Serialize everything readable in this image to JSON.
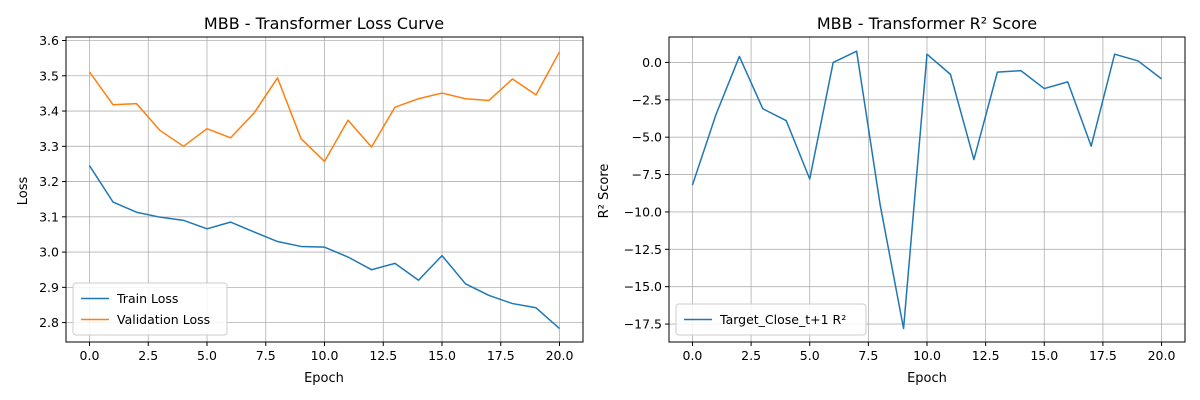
{
  "chart_data": [
    {
      "type": "line",
      "title": "MBB - Transformer Loss Curve",
      "xlabel": "Epoch",
      "ylabel": "Loss",
      "xlim": [
        -1,
        21
      ],
      "ylim": [
        2.745,
        3.61
      ],
      "xticks": [
        0,
        2.5,
        5,
        7.5,
        10,
        12.5,
        15,
        17.5,
        20
      ],
      "xtick_labels": [
        "0.0",
        "2.5",
        "5.0",
        "7.5",
        "10.0",
        "12.5",
        "15.0",
        "17.5",
        "20.0"
      ],
      "yticks": [
        2.8,
        2.9,
        3.0,
        3.1,
        3.2,
        3.3,
        3.4,
        3.5,
        3.6
      ],
      "ytick_labels": [
        "2.8",
        "2.9",
        "3.0",
        "3.1",
        "3.2",
        "3.3",
        "3.4",
        "3.5",
        "3.6"
      ],
      "grid": true,
      "legend_position": "lower-left",
      "x": [
        0,
        1,
        2,
        3,
        4,
        5,
        6,
        7,
        8,
        9,
        10,
        11,
        12,
        13,
        14,
        15,
        16,
        17,
        18,
        19,
        20
      ],
      "series": [
        {
          "name": "Train Loss",
          "color": "#1f77b4",
          "values": [
            3.245,
            3.142,
            3.113,
            3.099,
            3.09,
            3.066,
            3.085,
            3.057,
            3.03,
            3.016,
            3.014,
            2.986,
            2.95,
            2.968,
            2.92,
            2.99,
            2.91,
            2.877,
            2.854,
            2.842,
            2.783
          ]
        },
        {
          "name": "Validation Loss",
          "color": "#ff7f0e",
          "values": [
            3.511,
            3.418,
            3.421,
            3.345,
            3.3,
            3.35,
            3.324,
            3.394,
            3.494,
            3.322,
            3.257,
            3.374,
            3.298,
            3.411,
            3.435,
            3.451,
            3.435,
            3.43,
            3.491,
            3.446,
            3.568
          ]
        }
      ]
    },
    {
      "type": "line",
      "title": "MBB - Transformer R² Score",
      "xlabel": "Epoch",
      "ylabel": "R² Score",
      "xlim": [
        -1,
        21
      ],
      "ylim": [
        -18.7,
        1.7
      ],
      "xticks": [
        0,
        2.5,
        5,
        7.5,
        10,
        12.5,
        15,
        17.5,
        20
      ],
      "xtick_labels": [
        "0.0",
        "2.5",
        "5.0",
        "7.5",
        "10.0",
        "12.5",
        "15.0",
        "17.5",
        "20.0"
      ],
      "yticks": [
        0,
        -2.5,
        -5,
        -7.5,
        -10,
        -12.5,
        -15,
        -17.5
      ],
      "ytick_labels": [
        "0.0",
        "−2.5",
        "−5.0",
        "−7.5",
        "−10.0",
        "−12.5",
        "−15.0",
        "−17.5"
      ],
      "grid": true,
      "legend_position": "lower-left",
      "x": [
        0,
        1,
        2,
        3,
        4,
        5,
        6,
        7,
        8,
        9,
        10,
        11,
        12,
        13,
        14,
        15,
        16,
        17,
        18,
        19,
        20
      ],
      "series": [
        {
          "name": "Target_Close_t+1 R²",
          "color": "#1f77b4",
          "values": [
            -8.2,
            -3.5,
            0.4,
            -3.1,
            -3.9,
            -7.8,
            0.0,
            0.75,
            -9.5,
            -17.8,
            0.55,
            -0.8,
            -6.5,
            -0.65,
            -0.55,
            -1.75,
            -1.3,
            -5.6,
            0.55,
            0.1,
            -1.1
          ]
        }
      ]
    }
  ]
}
